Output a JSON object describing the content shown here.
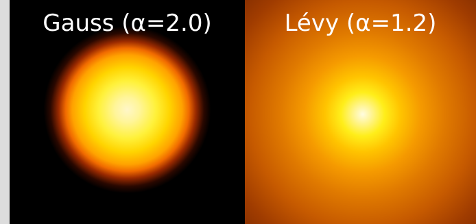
{
  "panels": [
    {
      "title": "Gauss (α=2.0)"
    },
    {
      "title": "Lévy (α=1.2)"
    }
  ],
  "colors": {
    "background": "#dcdcdc",
    "gauss_panel": "#000000",
    "levy_panel_edge": "#5e1c00",
    "core": "#fffce0",
    "yellow": "#ffee1a",
    "orange": "#f59a00"
  }
}
